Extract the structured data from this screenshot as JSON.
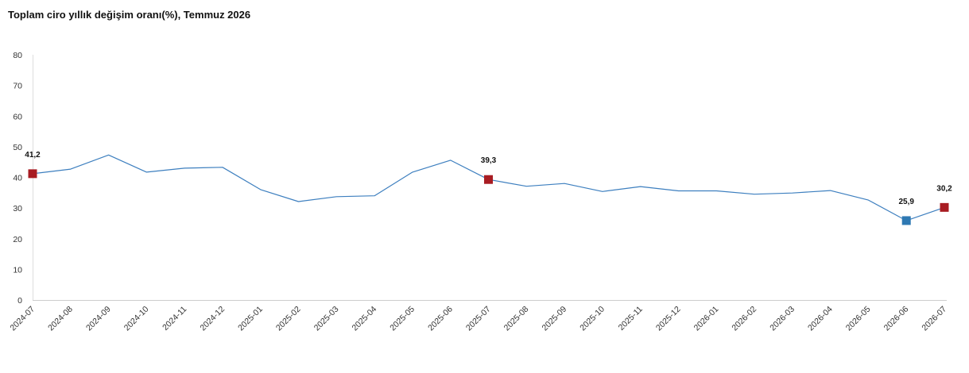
{
  "chart_data": {
    "type": "line",
    "title": "Toplam ciro yıllık değişim oranı(%), Temmuz 2026",
    "xlabel": "",
    "ylabel": "",
    "ylim": [
      0,
      80
    ],
    "yticks": [
      "0",
      "10",
      "20",
      "30",
      "40",
      "50",
      "60",
      "70",
      "80"
    ],
    "grid": false,
    "categories": [
      "2024-07",
      "2024-08",
      "2024-09",
      "2024-10",
      "2024-11",
      "2024-12",
      "2025-01",
      "2025-02",
      "2025-03",
      "2025-04",
      "2025-05",
      "2025-06",
      "2025-07",
      "2025-08",
      "2025-09",
      "2025-10",
      "2025-11",
      "2025-12",
      "2026-01",
      "2026-02",
      "2026-03",
      "2026-04",
      "2026-05",
      "2026-06",
      "2026-07"
    ],
    "series": [
      {
        "values": [
          41.2,
          42.7,
          47.3,
          41.7,
          43.0,
          43.3,
          36.0,
          32.1,
          33.7,
          34.0,
          41.7,
          45.6,
          39.3,
          37.1,
          38.0,
          35.4,
          37.0,
          35.6,
          35.6,
          34.5,
          34.9,
          35.7,
          32.6,
          25.9,
          30.2
        ],
        "color": "#3d7fbf"
      }
    ],
    "highlighted_points": [
      {
        "category": "2024-07",
        "value": 41.2,
        "label": "41,2",
        "color": "#a81c22"
      },
      {
        "category": "2025-07",
        "value": 39.3,
        "label": "39,3",
        "color": "#a81c22"
      },
      {
        "category": "2026-06",
        "value": 25.9,
        "label": "25,9",
        "color": "#2e79b3"
      },
      {
        "category": "2026-07",
        "value": 30.2,
        "label": "30,2",
        "color": "#a81c22"
      }
    ]
  }
}
